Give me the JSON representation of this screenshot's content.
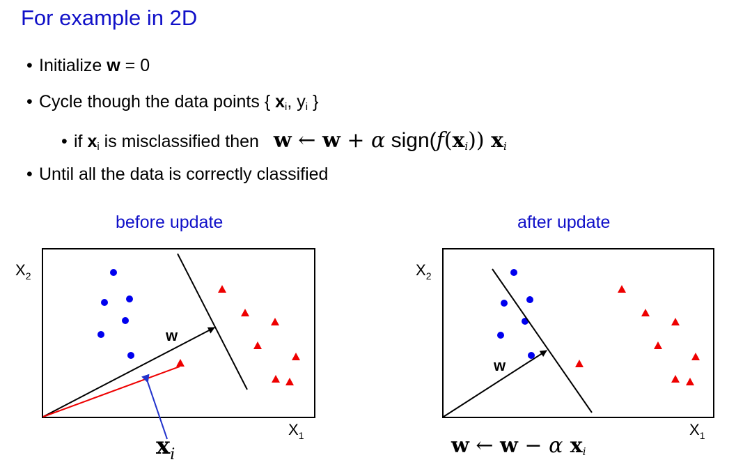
{
  "title": "For example in 2D",
  "bullets": {
    "b1_prefix": "Initialize ",
    "b1_bold": "w",
    "b1_suffix": " = 0",
    "b2_prefix": "Cycle though the data points { ",
    "b2_x": "x",
    "b2_i": "i",
    "b2_mid": ", y",
    "b2_i2": "i",
    "b2_suffix": " }",
    "b3_prefix": "if ",
    "b3_x": "x",
    "b3_i": "i",
    "b3_suffix": " is misclassified then",
    "b4": "Until all the data is correctly classified",
    "bullet_char": "•"
  },
  "update_rule": {
    "w1": "w",
    "arrow": " ← ",
    "w2": "w",
    "plus": " + ",
    "alpha": "α",
    "sign": " sign(",
    "f": "f",
    "open": "(",
    "x": "x",
    "i": "i",
    "close": ")) ",
    "x2": "x",
    "i2": "i"
  },
  "panels": {
    "before_caption": "before update",
    "after_caption": "after update",
    "x1_label": "X",
    "x1_sub": "1",
    "x2_label": "X",
    "x2_sub": "2",
    "w_label": "w",
    "xi_label_x": "x",
    "xi_label_i": "i"
  },
  "after_formula": {
    "w1": "w",
    "arrow": " ← ",
    "w2": "w",
    "minus": " − ",
    "alpha": "α",
    "x": " x",
    "i": "i"
  },
  "colors": {
    "title_blue": "#1010c8",
    "blue_points": "#0000ee",
    "red_points": "#ee0000",
    "xi_arrow": "#2233cc"
  }
}
